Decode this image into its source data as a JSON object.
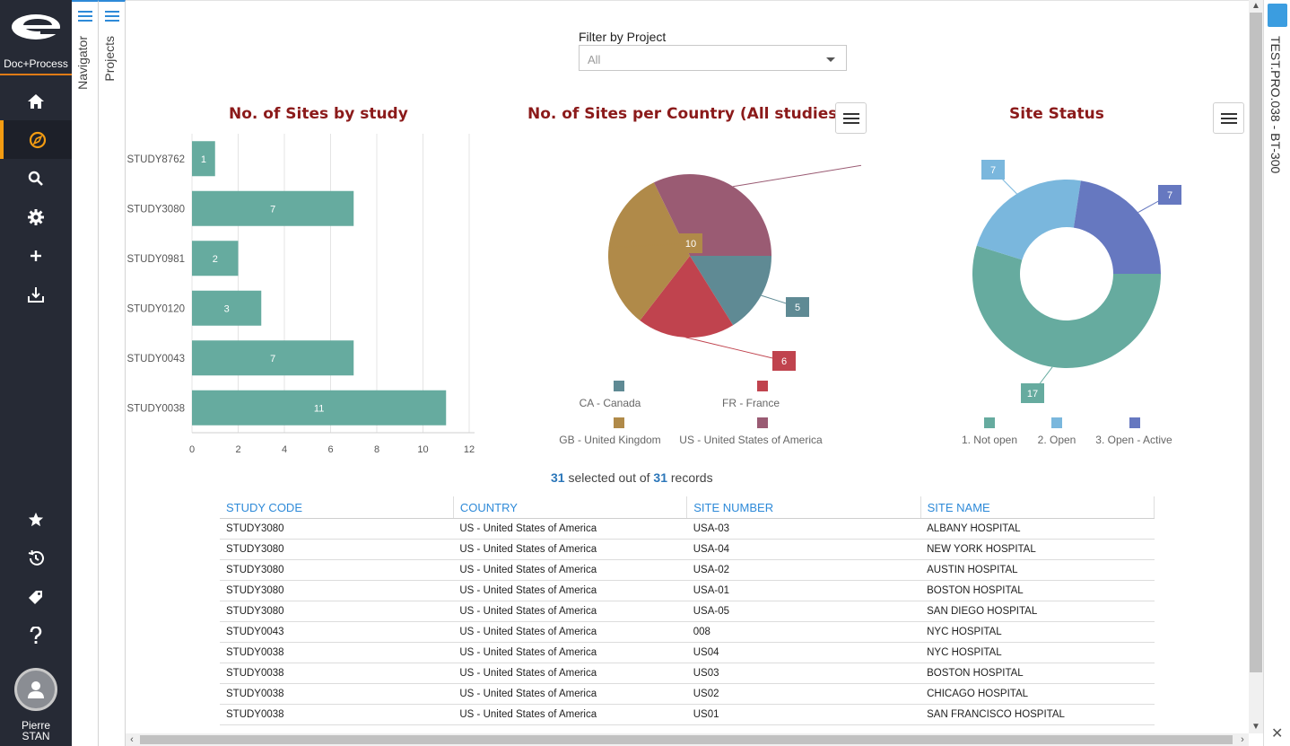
{
  "app": {
    "logo_text": "Doc+Process"
  },
  "sidebar": {
    "items": [
      {
        "name": "home-icon"
      },
      {
        "name": "compass-icon",
        "active": true
      },
      {
        "name": "search-icon"
      },
      {
        "name": "gear-icon"
      },
      {
        "name": "plus-icon"
      },
      {
        "name": "download-tray-icon"
      },
      {
        "name": "star-icon"
      },
      {
        "name": "history-icon"
      },
      {
        "name": "tags-icon"
      },
      {
        "name": "help-icon"
      }
    ],
    "user": {
      "first": "Pierre",
      "last": "STAN"
    }
  },
  "panels": {
    "navigator": "Navigator",
    "projects": "Projects"
  },
  "filter": {
    "label": "Filter by Project",
    "value": "All"
  },
  "colors": {
    "bar": "#66ab9f",
    "title": "#8b1a1a",
    "canada": "#5f8a94",
    "france": "#c0434e",
    "uk": "#b08a49",
    "usa": "#9a5b73",
    "not_open": "#66ab9f",
    "open": "#7ab7dd",
    "open_active": "#6678c0"
  },
  "chart_data": [
    {
      "type": "bar",
      "title": "No. of Sites by study",
      "categories": [
        "STUDY8762",
        "STUDY3080",
        "STUDY0981",
        "STUDY0120",
        "STUDY0043",
        "STUDY0038"
      ],
      "values": [
        1,
        7,
        2,
        3,
        7,
        11
      ],
      "xlim": [
        0,
        12
      ],
      "xticks": [
        "0",
        "2",
        "4",
        "6",
        "8",
        "10",
        "12"
      ],
      "grid": true
    },
    {
      "type": "pie",
      "title": "No. of Sites per Country (All studies)",
      "labels": [
        "CA - Canada",
        "FR - France",
        "GB - United Kingdom",
        "US - United States of America"
      ],
      "values": [
        5,
        6,
        10,
        10
      ],
      "legend": "bottom"
    },
    {
      "type": "pie",
      "title": "Site Status",
      "donut": true,
      "labels": [
        "1. Not open",
        "2. Open",
        "3. Open - Active"
      ],
      "values": [
        17,
        7,
        7
      ],
      "legend": "bottom"
    }
  ],
  "records": {
    "selected": "31",
    "middle": " selected out of ",
    "total": "31",
    "suffix": " records"
  },
  "table": {
    "columns": [
      "STUDY CODE",
      "COUNTRY",
      "SITE NUMBER",
      "SITE NAME"
    ],
    "rows": [
      [
        "STUDY3080",
        "US - United States of America",
        "USA-03",
        "ALBANY HOSPITAL"
      ],
      [
        "STUDY3080",
        "US - United States of America",
        "USA-04",
        "NEW YORK HOSPITAL"
      ],
      [
        "STUDY3080",
        "US - United States of America",
        "USA-02",
        "AUSTIN HOSPITAL"
      ],
      [
        "STUDY3080",
        "US - United States of America",
        "USA-01",
        "BOSTON HOSPITAL"
      ],
      [
        "STUDY3080",
        "US - United States of America",
        "USA-05",
        "SAN DIEGO HOSPITAL"
      ],
      [
        "STUDY0043",
        "US - United States of America",
        "008",
        "NYC HOSPITAL"
      ],
      [
        "STUDY0038",
        "US - United States of America",
        "US04",
        "NYC HOSPITAL"
      ],
      [
        "STUDY0038",
        "US - United States of America",
        "US03",
        "BOSTON HOSPITAL"
      ],
      [
        "STUDY0038",
        "US - United States of America",
        "US02",
        "CHICAGO HOSPITAL"
      ],
      [
        "STUDY0038",
        "US - United States of America",
        "US01",
        "SAN FRANCISCO HOSPITAL"
      ]
    ]
  },
  "right_panel": {
    "title": "TEST.PRO.038 - BT-300"
  }
}
